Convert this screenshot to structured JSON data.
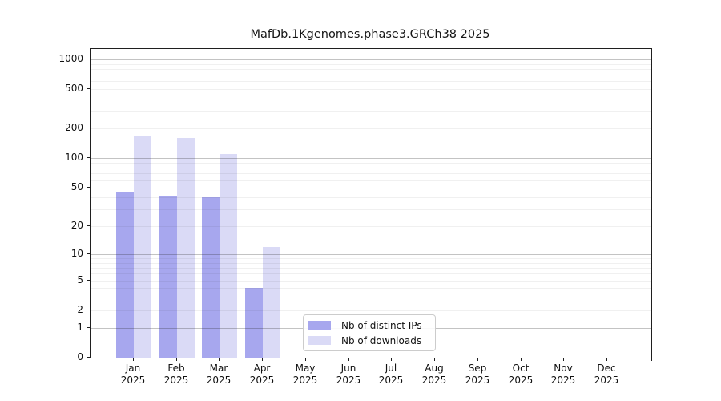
{
  "title": "MafDb.1Kgenomes.phase3.GRCh38 2025",
  "chart_data": {
    "type": "bar",
    "title": "MafDb.1Kgenomes.phase3.GRCh38 2025",
    "xlabel": "",
    "ylabel": "",
    "y_scale": "log1p",
    "ylim": [
      0,
      1280
    ],
    "y_ticks": [
      0,
      1,
      2,
      5,
      10,
      20,
      50,
      100,
      200,
      500,
      1000
    ],
    "grid": "horizontal",
    "legend_position": "lower-center",
    "categories": [
      "Jan 2025",
      "Feb 2025",
      "Mar 2025",
      "Apr 2025",
      "May 2025",
      "Jun 2025",
      "Jul 2025",
      "Aug 2025",
      "Sep 2025",
      "Oct 2025",
      "Nov 2025",
      "Dec 2025"
    ],
    "series": [
      {
        "name": "Nb of distinct IPs",
        "color": "#a7a7ee",
        "values": [
          45,
          41,
          40,
          4,
          0,
          0,
          0,
          0,
          0,
          0,
          0,
          0
        ]
      },
      {
        "name": "Nb of downloads",
        "color": "#dadaf6",
        "values": [
          168,
          160,
          110,
          12,
          0,
          0,
          0,
          0,
          0,
          0,
          0,
          0
        ]
      }
    ]
  }
}
